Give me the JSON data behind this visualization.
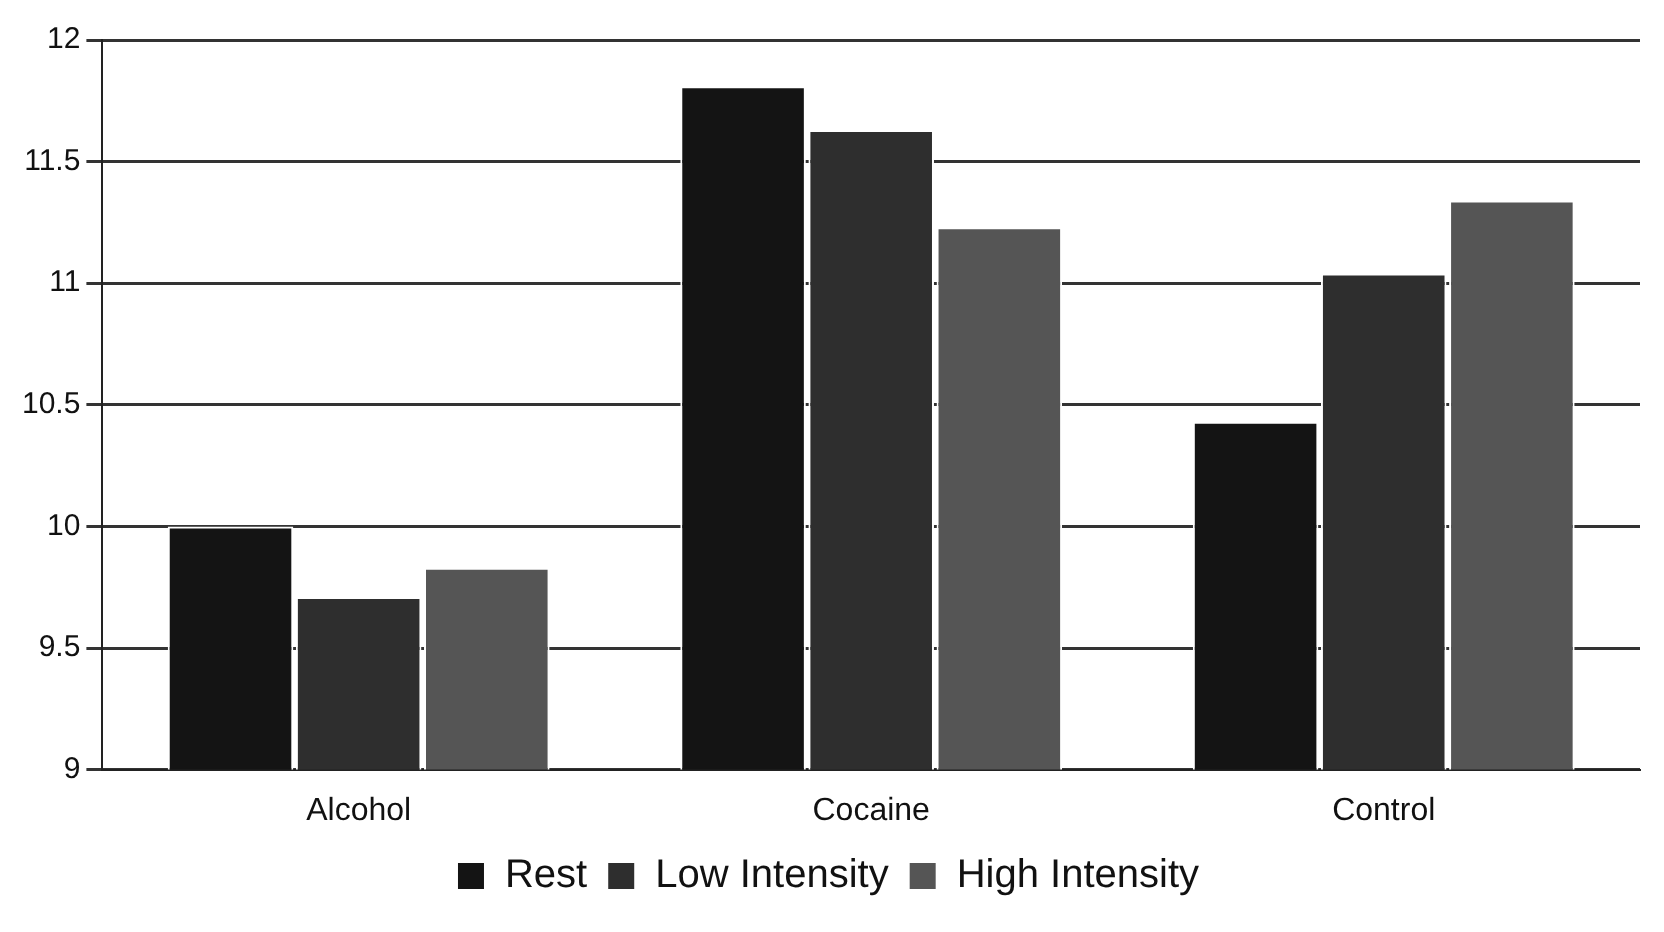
{
  "chart_data": {
    "type": "bar",
    "categories": [
      "Alcohol",
      "Cocaine",
      "Control"
    ],
    "series": [
      {
        "name": "Rest",
        "color": "#141414",
        "values": [
          10.0,
          11.81,
          10.43
        ]
      },
      {
        "name": "Low Intensity",
        "color": "#2e2e2e",
        "values": [
          9.71,
          11.63,
          11.04
        ]
      },
      {
        "name": "High Intensity",
        "color": "#555555",
        "values": [
          9.83,
          11.23,
          11.34
        ]
      }
    ],
    "ylim": [
      9,
      12
    ],
    "yticks": [
      9,
      9.5,
      10,
      10.5,
      11,
      11.5,
      12
    ],
    "grid": "y",
    "legend": "bottom"
  }
}
